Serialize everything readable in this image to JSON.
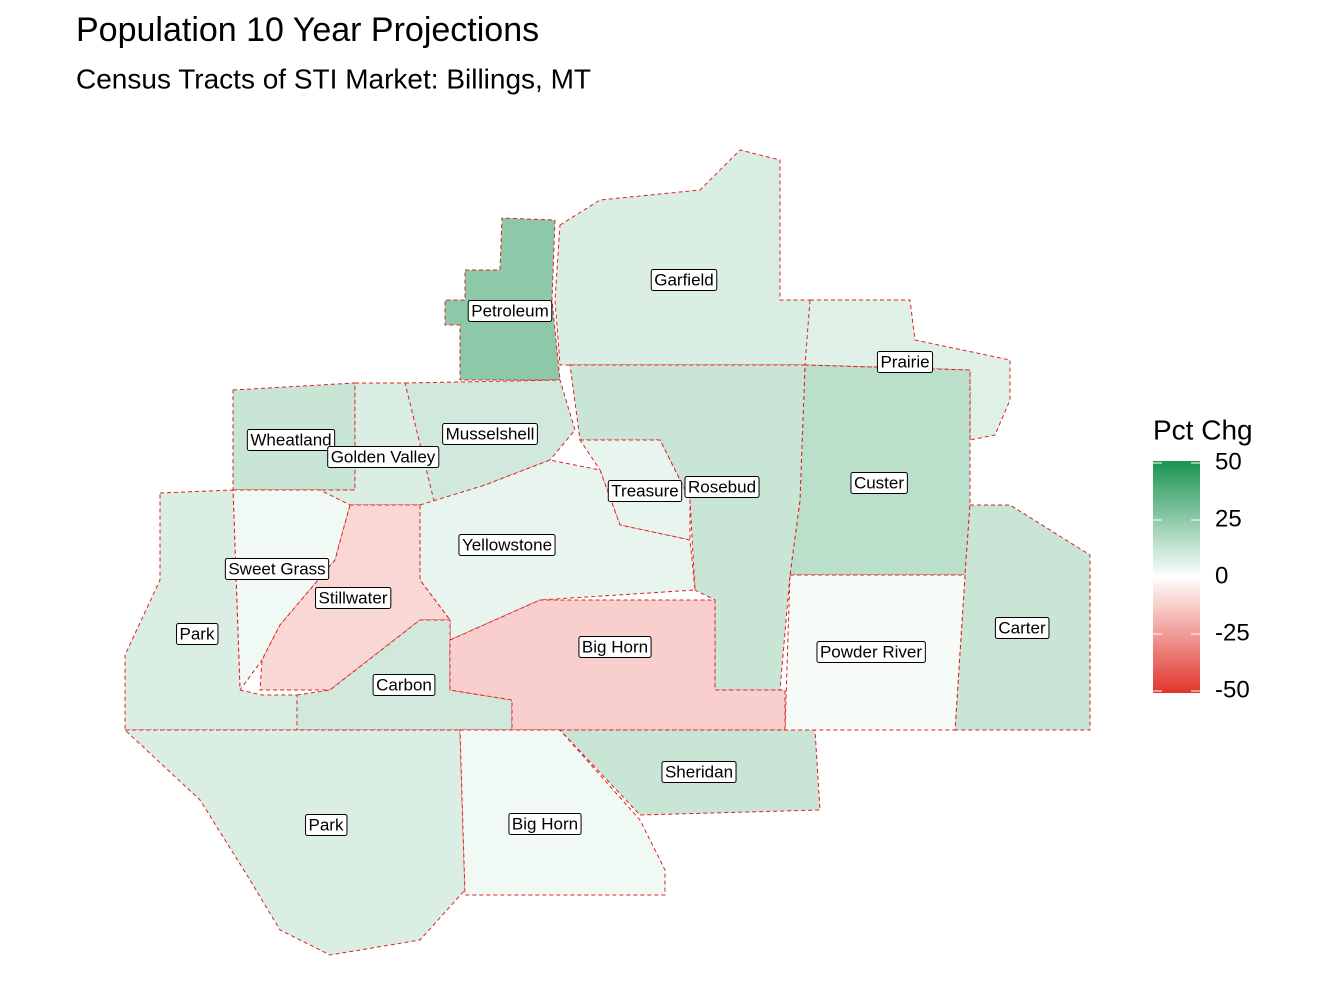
{
  "title": "Population 10 Year Projections",
  "subtitle": "Census Tracts of STI Market: Billings, MT",
  "legend": {
    "title": "Pct Chg",
    "range": [
      -50,
      50
    ],
    "ticks": [
      50,
      25,
      0,
      -25,
      -50
    ],
    "low_color": "#e0362c",
    "mid_color": "#ffffff",
    "high_color": "#1a9350"
  },
  "regions": [
    {
      "label": "Garfield",
      "value": 8
    },
    {
      "label": "Petroleum",
      "value": 25
    },
    {
      "label": "Prairie",
      "value": 7
    },
    {
      "label": "Custer",
      "value": 15
    },
    {
      "label": "Carter",
      "value": 12
    },
    {
      "label": "Powder River",
      "value": 2
    },
    {
      "label": "Rosebud",
      "value": 12
    },
    {
      "label": "Treasure",
      "value": 5
    },
    {
      "label": "Musselshell",
      "value": 10
    },
    {
      "label": "Wheatland",
      "value": 12
    },
    {
      "label": "Golden Valley",
      "value": 8
    },
    {
      "label": "Yellowstone",
      "value": 5
    },
    {
      "label": "Sweet Grass",
      "value": 3
    },
    {
      "label": "Stillwater",
      "value": -10
    },
    {
      "label": "Park",
      "value": 8
    },
    {
      "label": "Carbon",
      "value": 10
    },
    {
      "label": "Big Horn",
      "value": -12
    },
    {
      "label": "Park",
      "value": 8
    },
    {
      "label": "Big Horn",
      "value": 3
    },
    {
      "label": "Sheridan",
      "value": 12
    }
  ]
}
